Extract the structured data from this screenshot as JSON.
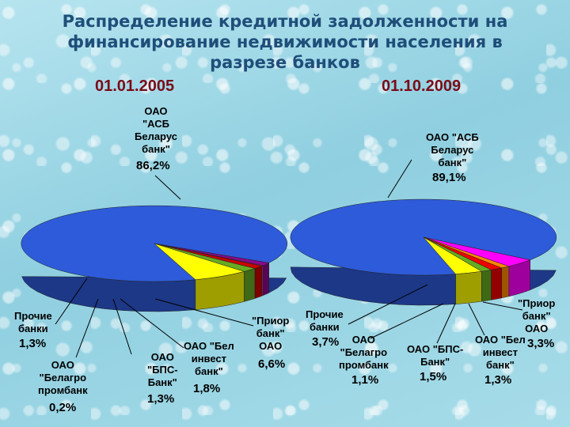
{
  "title": "Распределение кредитной задолженности на финансирование недвижимости населения в разрезе банков",
  "chart_data": [
    {
      "type": "pie",
      "title": "01.01.2005",
      "slices": [
        {
          "label": "ОАО \"АСБ Беларус банк\"",
          "value": 86.2,
          "value_text": "86,2%",
          "color": "#2e5bd9"
        },
        {
          "label": "Прочие банки",
          "value": 1.3,
          "value_text": "1,3%",
          "color": "#8a0a8a"
        },
        {
          "label": "ОАО \"Белагро промбанк\"",
          "value": 0.2,
          "value_text": "0,2%",
          "color": "#ff3399"
        },
        {
          "label": "ОАО \"БПС-Банк\"",
          "value": 1.3,
          "value_text": "1,3%",
          "color": "#cc0000"
        },
        {
          "label": "ОАО \"Бел инвест банк\"",
          "value": 1.8,
          "value_text": "1,8%",
          "color": "#66aa22"
        },
        {
          "label": "\"Приор банк\" ОАО",
          "value": 6.6,
          "value_text": "6,6%",
          "color": "#ffff00"
        }
      ]
    },
    {
      "type": "pie",
      "title": "01.10.2009",
      "slices": [
        {
          "label": "ОАО \"АСБ Беларус банк\"",
          "value": 89.1,
          "value_text": "89,1%",
          "color": "#2e5bd9"
        },
        {
          "label": "Прочие банки",
          "value": 3.7,
          "value_text": "3,7%",
          "color": "#ff00ff"
        },
        {
          "label": "ОАО \"Белагро промбанк\"",
          "value": 1.1,
          "value_text": "1,1%",
          "color": "#ff8800"
        },
        {
          "label": "ОАО \"БПС-Банк\"",
          "value": 1.5,
          "value_text": "1,5%",
          "color": "#ee0000"
        },
        {
          "label": "ОАО \"Бел инвест банк\"",
          "value": 1.3,
          "value_text": "1,3%",
          "color": "#66aa22"
        },
        {
          "label": "\"Приор банк\" ОАО",
          "value": 3.3,
          "value_text": "3,3%",
          "color": "#ffff00"
        }
      ]
    }
  ],
  "labels": {
    "p1_asb": "ОАО\n\"АСБ\nБеларус\nбанк\"",
    "p1_prochie": "Прочие\nбанки",
    "p1_belagro": "ОАО\n\"Белагро\nпромбанк",
    "p1_bps": "ОАО\n\"БПС-\nБанк\"",
    "p1_belinvest": "ОАО \"Бел\nинвест\nбанк\"",
    "p1_prior": "\"Приор\nбанк\"\nОАО",
    "p2_asb": "ОАО \"АСБ\nБеларус\nбанк\"",
    "p2_prochie": "Прочие\nбанки",
    "p2_belagro": "ОАО\n\"Белагро\nпромбанк",
    "p2_bps": "ОАО \"БПС-\nБанк\"",
    "p2_belinvest": "ОАО \"Бел\nинвест\nбанк\"",
    "p2_prior": "\"Приор\nбанк\"\nОАО"
  }
}
